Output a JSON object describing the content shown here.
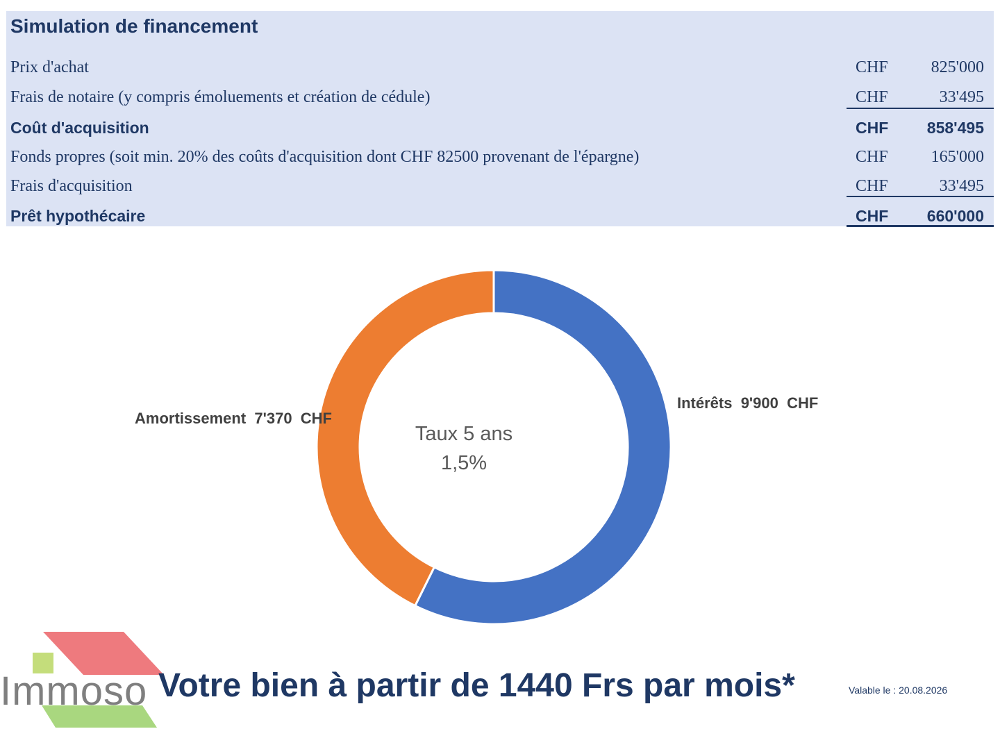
{
  "simulation": {
    "title": "Simulation de financement",
    "rows": [
      {
        "label": "Prix d'achat",
        "currency": "CHF",
        "value": "825'000"
      },
      {
        "label": "Frais de notaire (y compris émoluements et création de cédule)",
        "currency": "CHF",
        "value": "33'495"
      },
      {
        "label": "Coût d'acquisition",
        "currency": "CHF",
        "value": "858'495"
      },
      {
        "label": "Fonds propres (soit min. 20% des coûts d'acquisition dont CHF 82500 provenant de l'épargne)",
        "currency": "CHF",
        "value": "165'000"
      },
      {
        "label": "Frais d'acquisition",
        "currency": "CHF",
        "value": "33'495"
      },
      {
        "label": "Prêt hypothécaire",
        "currency": "CHF",
        "value": "660'000"
      }
    ]
  },
  "chart_data": {
    "type": "pie",
    "donut": true,
    "center_text": [
      "Taux 5 ans",
      "1,5%"
    ],
    "slices": [
      {
        "name": "Intérêts",
        "value": 9900,
        "label": "Intérêts  9'900  CHF",
        "color": "#4472c4"
      },
      {
        "name": "Amortissement",
        "value": 7370,
        "label": "Amortissement  7'370  CHF",
        "color": "#ed7d31"
      }
    ]
  },
  "footer": {
    "headline": "Votre bien à partir de 1440 Frs par mois*",
    "valid_text": "Valable le : 20.08.2026"
  },
  "logo": {
    "text": "Immoso",
    "colors": {
      "roof": "#ee7a7e",
      "square": "#c4dd7b",
      "stripe": "#8fcf6e",
      "text": "#7f7f7f"
    }
  }
}
